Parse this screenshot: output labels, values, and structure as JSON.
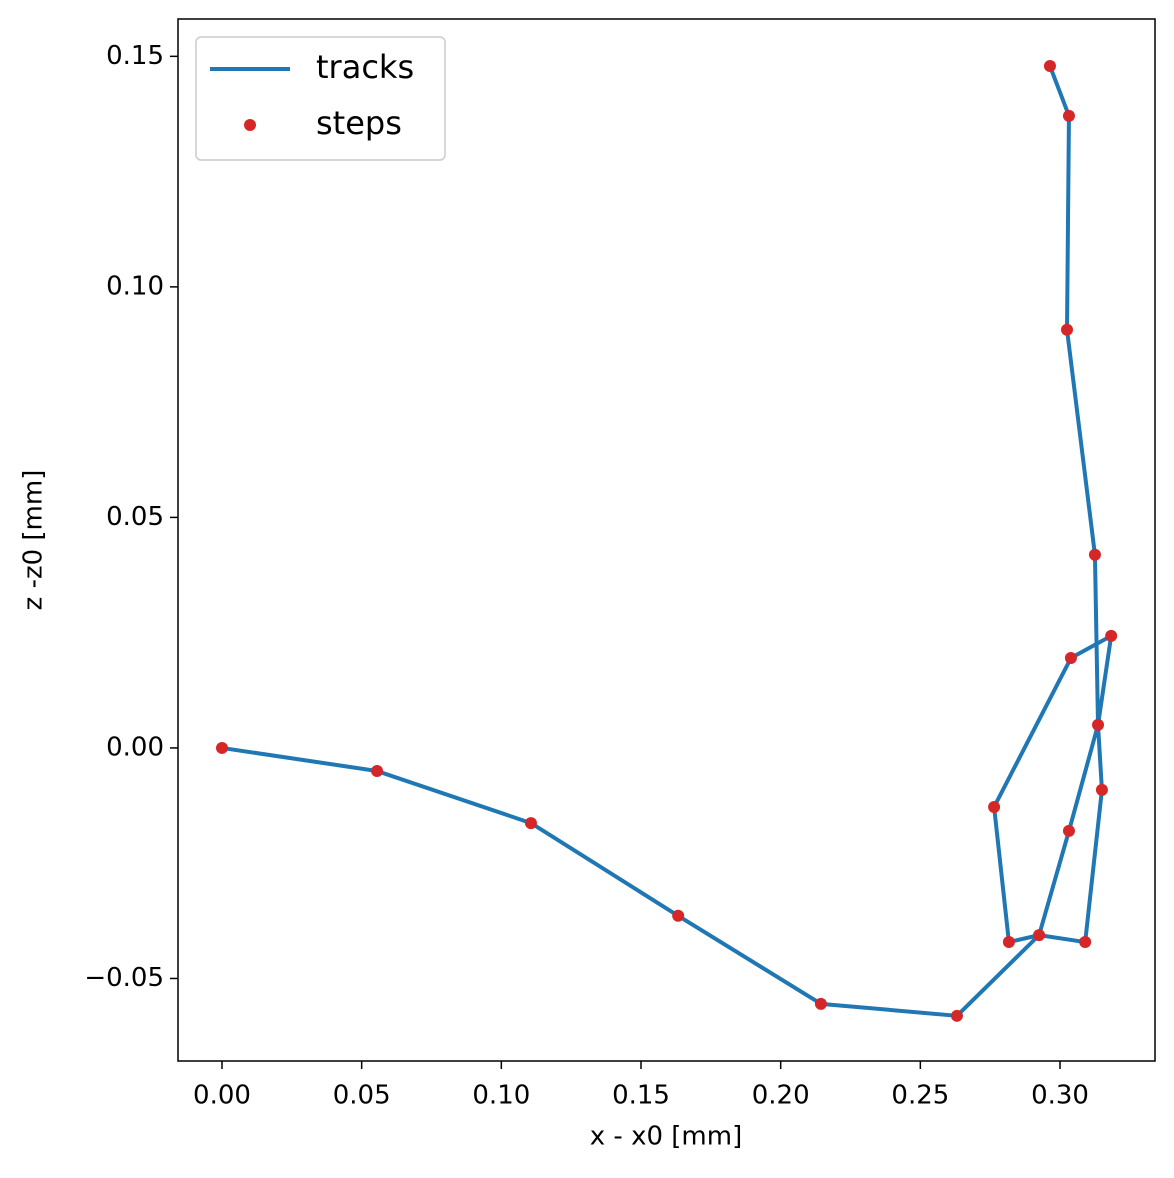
{
  "chart_data": {
    "type": "line-scatter",
    "x_label": "x - x0 [mm]",
    "y_label": "z -z0 [mm]",
    "xlim": [
      -0.01575,
      0.334
    ],
    "ylim": [
      -0.0679,
      0.1581
    ],
    "xticks": [
      {
        "value": 0,
        "label": "0.00"
      },
      {
        "value": 0.05,
        "label": "0.05"
      },
      {
        "value": 0.1,
        "label": "0.10"
      },
      {
        "value": 0.15,
        "label": "0.15"
      },
      {
        "value": 0.2,
        "label": "0.20"
      },
      {
        "value": 0.25,
        "label": "0.25"
      },
      {
        "value": 0.3,
        "label": "0.30"
      }
    ],
    "yticks": [
      {
        "value": -0.05,
        "label": "−0.05"
      },
      {
        "value": 0,
        "label": "0.00"
      },
      {
        "value": 0.05,
        "label": "0.05"
      },
      {
        "value": 0.1,
        "label": "0.10"
      },
      {
        "value": 0.15,
        "label": "0.15"
      }
    ],
    "legend": "upper left",
    "series": [
      {
        "name": "tracks",
        "kind": "line",
        "color": "#1f77b4",
        "x": [
          0,
          0.0555,
          0.1106,
          0.1633,
          0.2144,
          0.2631,
          0.2925,
          0.2817,
          0.2764,
          0.3039,
          0.3183,
          0.3136,
          0.3032,
          0.2925,
          0.309,
          0.315,
          0.3136,
          0.3125,
          0.3025,
          0.3032,
          0.2964
        ],
        "values": [
          0,
          -0.005,
          -0.0163,
          -0.0364,
          -0.0555,
          -0.0581,
          -0.0406,
          -0.0421,
          -0.0128,
          0.0195,
          0.0243,
          0.005,
          -0.018,
          -0.0406,
          -0.0421,
          -0.0091,
          0.005,
          0.0419,
          0.0907,
          0.1371,
          0.1479
        ]
      },
      {
        "name": "steps",
        "kind": "scatter",
        "color": "#d62728",
        "x": [
          0,
          0.0555,
          0.1106,
          0.1633,
          0.2144,
          0.2631,
          0.2925,
          0.2817,
          0.2764,
          0.3039,
          0.3183,
          0.3136,
          0.3032,
          0.309,
          0.315,
          0.3125,
          0.3025,
          0.3032,
          0.2964
        ],
        "values": [
          0,
          -0.005,
          -0.0163,
          -0.0364,
          -0.0555,
          -0.0581,
          -0.0406,
          -0.0421,
          -0.0128,
          0.0195,
          0.0243,
          0.005,
          -0.018,
          -0.0421,
          -0.0091,
          0.0419,
          0.0907,
          0.1371,
          0.1479
        ]
      }
    ]
  }
}
